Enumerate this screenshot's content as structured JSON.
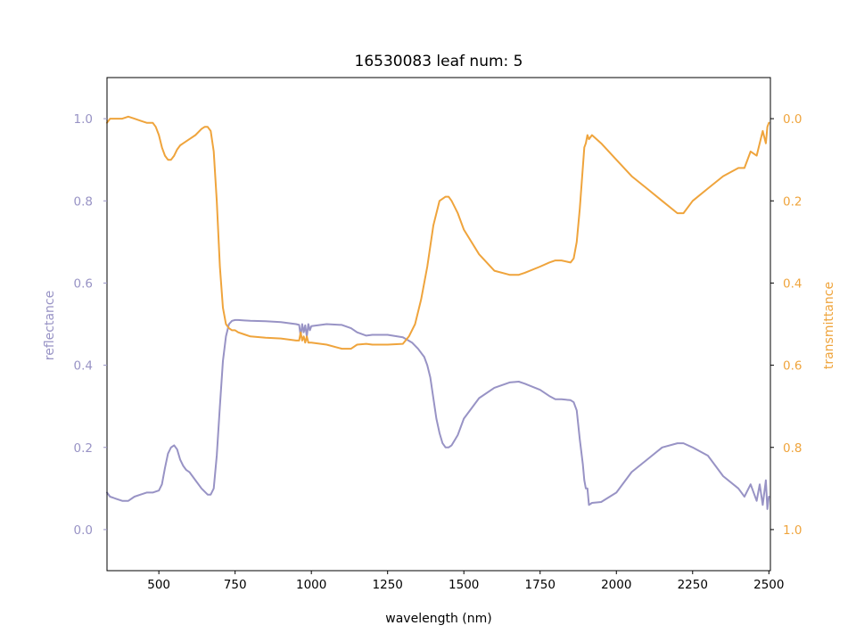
{
  "chart_data": {
    "type": "line",
    "title": "16530083 leaf num: 5",
    "xlabel": "wavelength (nm)",
    "xlim": [
      330,
      2505
    ],
    "x_ticks": [
      "500",
      "750",
      "1000",
      "1250",
      "1500",
      "1750",
      "2000",
      "2250",
      "2500"
    ],
    "grid": false,
    "y_left": {
      "label": "reflectance",
      "ylim": [
        -0.1,
        1.1
      ],
      "ticks": [
        "0.0",
        "0.2",
        "0.4",
        "0.6",
        "0.8",
        "1.0"
      ],
      "color": "#9893c5"
    },
    "y_right": {
      "label": "transmittance",
      "ylim": [
        1.1,
        -0.1
      ],
      "inverted": true,
      "ticks": [
        "0.0",
        "0.2",
        "0.4",
        "0.6",
        "0.8",
        "1.0"
      ],
      "color": "#efa43c"
    },
    "series": [
      {
        "axis": "left",
        "color": "#9893c5",
        "x": [
          330,
          340,
          360,
          380,
          400,
          420,
          440,
          460,
          480,
          500,
          510,
          520,
          530,
          540,
          550,
          560,
          570,
          580,
          590,
          600,
          620,
          640,
          660,
          670,
          680,
          690,
          700,
          710,
          720,
          730,
          740,
          750,
          760,
          780,
          800,
          850,
          900,
          950,
          960,
          965,
          970,
          975,
          980,
          985,
          990,
          995,
          1000,
          1050,
          1100,
          1130,
          1150,
          1180,
          1200,
          1250,
          1300,
          1330,
          1350,
          1370,
          1380,
          1390,
          1400,
          1410,
          1420,
          1430,
          1440,
          1450,
          1460,
          1480,
          1500,
          1550,
          1600,
          1650,
          1680,
          1700,
          1750,
          1780,
          1800,
          1820,
          1850,
          1860,
          1870,
          1880,
          1890,
          1895,
          1900,
          1905,
          1910,
          1920,
          1950,
          2000,
          2050,
          2100,
          2150,
          2200,
          2220,
          2250,
          2300,
          2350,
          2400,
          2420,
          2440,
          2460,
          2470,
          2480,
          2490,
          2495,
          2500
        ],
        "y": [
          0.09,
          0.08,
          0.075,
          0.07,
          0.07,
          0.08,
          0.085,
          0.09,
          0.09,
          0.095,
          0.11,
          0.15,
          0.185,
          0.2,
          0.205,
          0.195,
          0.17,
          0.155,
          0.145,
          0.14,
          0.12,
          0.1,
          0.085,
          0.085,
          0.1,
          0.18,
          0.3,
          0.41,
          0.47,
          0.5,
          0.508,
          0.51,
          0.51,
          0.509,
          0.508,
          0.507,
          0.505,
          0.5,
          0.498,
          0.47,
          0.5,
          0.48,
          0.497,
          0.47,
          0.5,
          0.485,
          0.495,
          0.5,
          0.498,
          0.49,
          0.48,
          0.472,
          0.474,
          0.474,
          0.468,
          0.455,
          0.44,
          0.42,
          0.4,
          0.37,
          0.32,
          0.27,
          0.235,
          0.21,
          0.2,
          0.2,
          0.205,
          0.23,
          0.27,
          0.32,
          0.345,
          0.358,
          0.36,
          0.355,
          0.34,
          0.325,
          0.317,
          0.317,
          0.315,
          0.31,
          0.29,
          0.22,
          0.16,
          0.12,
          0.1,
          0.1,
          0.06,
          0.065,
          0.067,
          0.09,
          0.14,
          0.17,
          0.2,
          0.21,
          0.21,
          0.2,
          0.18,
          0.13,
          0.1,
          0.08,
          0.11,
          0.07,
          0.11,
          0.06,
          0.12,
          0.05,
          0.08
        ]
      },
      {
        "axis": "right",
        "color": "#efa43c",
        "x": [
          330,
          340,
          360,
          380,
          400,
          420,
          440,
          460,
          480,
          490,
          500,
          510,
          520,
          530,
          540,
          550,
          560,
          570,
          580,
          600,
          620,
          640,
          650,
          660,
          670,
          680,
          690,
          700,
          710,
          720,
          730,
          740,
          750,
          760,
          780,
          800,
          850,
          900,
          950,
          960,
          965,
          970,
          975,
          980,
          985,
          990,
          1000,
          1050,
          1100,
          1130,
          1150,
          1180,
          1200,
          1250,
          1300,
          1320,
          1340,
          1360,
          1380,
          1400,
          1420,
          1440,
          1450,
          1460,
          1480,
          1500,
          1550,
          1600,
          1650,
          1680,
          1700,
          1750,
          1780,
          1800,
          1820,
          1850,
          1860,
          1870,
          1880,
          1890,
          1895,
          1900,
          1905,
          1910,
          1920,
          1950,
          2000,
          2050,
          2100,
          2150,
          2200,
          2220,
          2250,
          2300,
          2350,
          2400,
          2420,
          2440,
          2460,
          2470,
          2480,
          2490,
          2495,
          2500
        ],
        "y": [
          0.01,
          0.0,
          0.0,
          0.0,
          -0.005,
          0.0,
          0.005,
          0.01,
          0.01,
          0.02,
          0.04,
          0.07,
          0.09,
          0.1,
          0.1,
          0.09,
          0.075,
          0.065,
          0.06,
          0.05,
          0.04,
          0.025,
          0.02,
          0.02,
          0.03,
          0.08,
          0.2,
          0.36,
          0.46,
          0.5,
          0.51,
          0.515,
          0.515,
          0.52,
          0.525,
          0.53,
          0.533,
          0.535,
          0.54,
          0.54,
          0.52,
          0.54,
          0.53,
          0.545,
          0.53,
          0.545,
          0.545,
          0.55,
          0.56,
          0.56,
          0.55,
          0.548,
          0.55,
          0.55,
          0.548,
          0.53,
          0.5,
          0.44,
          0.36,
          0.26,
          0.2,
          0.19,
          0.19,
          0.2,
          0.23,
          0.27,
          0.33,
          0.37,
          0.38,
          0.38,
          0.375,
          0.36,
          0.35,
          0.345,
          0.345,
          0.35,
          0.34,
          0.3,
          0.22,
          0.12,
          0.07,
          0.06,
          0.04,
          0.05,
          0.04,
          0.06,
          0.1,
          0.14,
          0.17,
          0.2,
          0.23,
          0.23,
          0.2,
          0.17,
          0.14,
          0.12,
          0.12,
          0.08,
          0.09,
          0.06,
          0.03,
          0.06,
          0.02,
          0.01
        ]
      }
    ]
  }
}
